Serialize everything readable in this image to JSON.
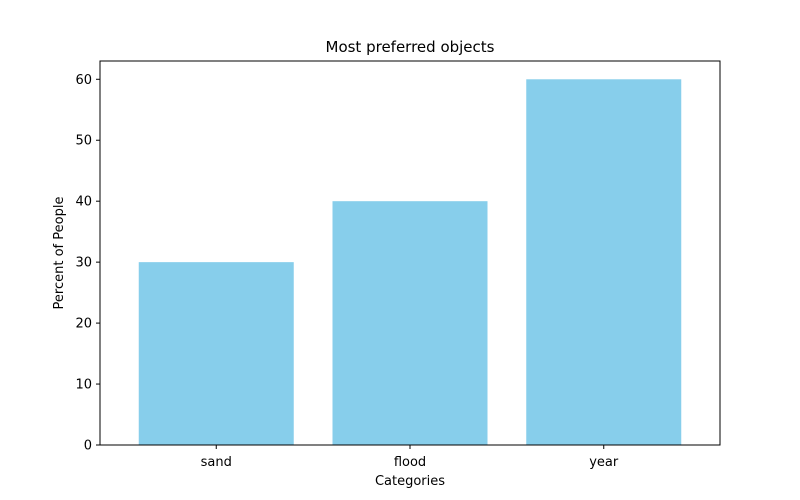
{
  "chart_data": {
    "type": "bar",
    "title": "Most preferred objects",
    "xlabel": "Categories",
    "ylabel": "Percent of People",
    "categories": [
      "sand",
      "flood",
      "year"
    ],
    "values": [
      30,
      40,
      60
    ],
    "ylim": [
      0,
      63
    ],
    "yticks": [
      0,
      10,
      20,
      30,
      40,
      50,
      60
    ],
    "grid": false,
    "bar_color": "#87ceeb"
  }
}
